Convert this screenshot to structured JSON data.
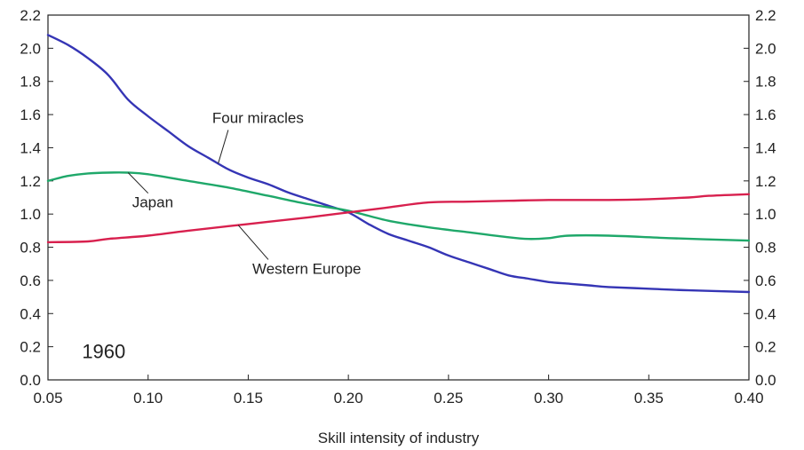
{
  "chart_data": {
    "type": "line",
    "xlabel": "Skill intensity of industry",
    "x_ticks": [
      "0.05",
      "0.10",
      "0.15",
      "0.20",
      "0.25",
      "0.30",
      "0.35",
      "0.40"
    ],
    "y_ticks": [
      "0.0",
      "0.2",
      "0.4",
      "0.6",
      "0.8",
      "1.0",
      "1.2",
      "1.4",
      "1.6",
      "1.8",
      "2.0",
      "2.2"
    ],
    "xlim": [
      0.05,
      0.4
    ],
    "ylim": [
      0.0,
      2.2
    ],
    "grid": false,
    "secondary_y_axis_mirrors_primary": true,
    "annotation": "1960",
    "series": [
      {
        "name": "Four miracles",
        "color": "#3535b5",
        "points": [
          [
            0.05,
            2.08
          ],
          [
            0.06,
            2.02
          ],
          [
            0.07,
            1.94
          ],
          [
            0.08,
            1.84
          ],
          [
            0.09,
            1.69
          ],
          [
            0.1,
            1.59
          ],
          [
            0.11,
            1.5
          ],
          [
            0.12,
            1.41
          ],
          [
            0.13,
            1.34
          ],
          [
            0.14,
            1.27
          ],
          [
            0.15,
            1.22
          ],
          [
            0.16,
            1.18
          ],
          [
            0.17,
            1.13
          ],
          [
            0.18,
            1.09
          ],
          [
            0.19,
            1.05
          ],
          [
            0.2,
            1.01
          ],
          [
            0.21,
            0.94
          ],
          [
            0.22,
            0.88
          ],
          [
            0.23,
            0.84
          ],
          [
            0.24,
            0.8
          ],
          [
            0.25,
            0.75
          ],
          [
            0.26,
            0.71
          ],
          [
            0.27,
            0.67
          ],
          [
            0.28,
            0.63
          ],
          [
            0.29,
            0.61
          ],
          [
            0.3,
            0.59
          ],
          [
            0.31,
            0.58
          ],
          [
            0.32,
            0.57
          ],
          [
            0.33,
            0.56
          ],
          [
            0.35,
            0.55
          ],
          [
            0.37,
            0.54
          ],
          [
            0.4,
            0.53
          ]
        ]
      },
      {
        "name": "Japan",
        "color": "#1fa86a",
        "points": [
          [
            0.05,
            1.2
          ],
          [
            0.06,
            1.23
          ],
          [
            0.07,
            1.245
          ],
          [
            0.08,
            1.25
          ],
          [
            0.09,
            1.25
          ],
          [
            0.1,
            1.24
          ],
          [
            0.12,
            1.2
          ],
          [
            0.14,
            1.16
          ],
          [
            0.16,
            1.11
          ],
          [
            0.18,
            1.06
          ],
          [
            0.2,
            1.02
          ],
          [
            0.22,
            0.96
          ],
          [
            0.24,
            0.92
          ],
          [
            0.26,
            0.89
          ],
          [
            0.28,
            0.86
          ],
          [
            0.29,
            0.85
          ],
          [
            0.3,
            0.855
          ],
          [
            0.31,
            0.87
          ],
          [
            0.33,
            0.87
          ],
          [
            0.36,
            0.855
          ],
          [
            0.4,
            0.84
          ]
        ]
      },
      {
        "name": "Western Europe",
        "color": "#d8204e",
        "points": [
          [
            0.05,
            0.83
          ],
          [
            0.07,
            0.835
          ],
          [
            0.08,
            0.85
          ],
          [
            0.1,
            0.87
          ],
          [
            0.12,
            0.9
          ],
          [
            0.15,
            0.94
          ],
          [
            0.18,
            0.98
          ],
          [
            0.2,
            1.01
          ],
          [
            0.22,
            1.04
          ],
          [
            0.24,
            1.07
          ],
          [
            0.26,
            1.075
          ],
          [
            0.28,
            1.08
          ],
          [
            0.3,
            1.085
          ],
          [
            0.33,
            1.085
          ],
          [
            0.35,
            1.09
          ],
          [
            0.37,
            1.1
          ],
          [
            0.38,
            1.11
          ],
          [
            0.4,
            1.12
          ]
        ]
      }
    ],
    "labels": [
      {
        "text": "Four miracles",
        "series": "Four miracles",
        "x": 0.14,
        "y": 1.55
      },
      {
        "text": "Japan",
        "series": "Japan",
        "x": 0.1,
        "y": 1.04
      },
      {
        "text": "Western Europe",
        "series": "Western Europe",
        "x": 0.16,
        "y": 0.64
      }
    ]
  }
}
